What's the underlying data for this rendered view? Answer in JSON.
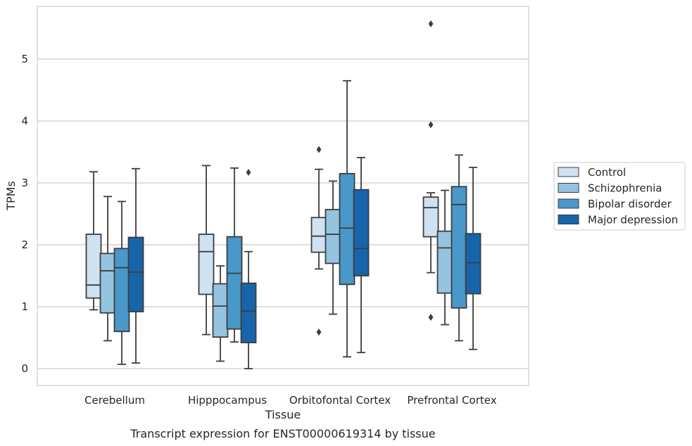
{
  "chart_data": {
    "type": "boxplot",
    "title": "",
    "caption": "Transcript expression for ENST00000619314 by tissue",
    "xlabel": "Tissue",
    "ylabel": "TPMs",
    "ylim": [
      -0.28,
      5.85
    ],
    "yticks": [
      0,
      1,
      2,
      3,
      4,
      5
    ],
    "grid": "horizontal",
    "legend_position": "right",
    "categories": [
      "Cerebellum",
      "Hipppocampus",
      "Orbitofontal Cortex",
      "Prefrontal Cortex"
    ],
    "series": [
      {
        "name": "Control",
        "color": "#d0e1f2",
        "boxes": [
          {
            "whislo": 0.95,
            "q1": 1.14,
            "med": 1.35,
            "q3": 2.17,
            "whishi": 3.18,
            "fliers": []
          },
          {
            "whislo": 0.55,
            "q1": 1.2,
            "med": 1.89,
            "q3": 2.17,
            "whishi": 3.28,
            "fliers": []
          },
          {
            "whislo": 1.61,
            "q1": 1.88,
            "med": 2.14,
            "q3": 2.44,
            "whishi": 3.22,
            "fliers": [
              3.54,
              0.59
            ]
          },
          {
            "whislo": 1.55,
            "q1": 2.13,
            "med": 2.6,
            "q3": 2.77,
            "whishi": 2.84,
            "fliers": [
              5.57,
              3.94,
              0.83
            ]
          }
        ]
      },
      {
        "name": "Schizophrenia",
        "color": "#94c4df",
        "boxes": [
          {
            "whislo": 0.45,
            "q1": 0.9,
            "med": 1.58,
            "q3": 1.86,
            "whishi": 2.78,
            "fliers": []
          },
          {
            "whislo": 0.12,
            "q1": 0.51,
            "med": 1.01,
            "q3": 1.37,
            "whishi": 1.66,
            "fliers": []
          },
          {
            "whislo": 0.88,
            "q1": 1.7,
            "med": 2.17,
            "q3": 2.57,
            "whishi": 3.03,
            "fliers": []
          },
          {
            "whislo": 0.71,
            "q1": 1.22,
            "med": 1.95,
            "q3": 2.22,
            "whishi": 2.88,
            "fliers": []
          }
        ]
      },
      {
        "name": "Bipolar disorder",
        "color": "#4a98c9",
        "boxes": [
          {
            "whislo": 0.07,
            "q1": 0.6,
            "med": 1.63,
            "q3": 1.94,
            "whishi": 2.7,
            "fliers": []
          },
          {
            "whislo": 0.43,
            "q1": 0.64,
            "med": 1.54,
            "q3": 2.13,
            "whishi": 3.24,
            "fliers": []
          },
          {
            "whislo": 0.19,
            "q1": 1.36,
            "med": 2.27,
            "q3": 3.15,
            "whishi": 4.65,
            "fliers": []
          },
          {
            "whislo": 0.45,
            "q1": 0.98,
            "med": 2.65,
            "q3": 2.94,
            "whishi": 3.45,
            "fliers": []
          }
        ]
      },
      {
        "name": "Major depression",
        "color": "#1764ab",
        "boxes": [
          {
            "whislo": 0.09,
            "q1": 0.92,
            "med": 1.56,
            "q3": 2.12,
            "whishi": 3.23,
            "fliers": []
          },
          {
            "whislo": 0.0,
            "q1": 0.42,
            "med": 0.93,
            "q3": 1.38,
            "whishi": 1.89,
            "fliers": [
              3.17
            ]
          },
          {
            "whislo": 0.26,
            "q1": 1.5,
            "med": 1.94,
            "q3": 2.89,
            "whishi": 3.41,
            "fliers": []
          },
          {
            "whislo": 0.31,
            "q1": 1.21,
            "med": 1.71,
            "q3": 2.18,
            "whishi": 3.25,
            "fliers": []
          }
        ]
      }
    ]
  }
}
